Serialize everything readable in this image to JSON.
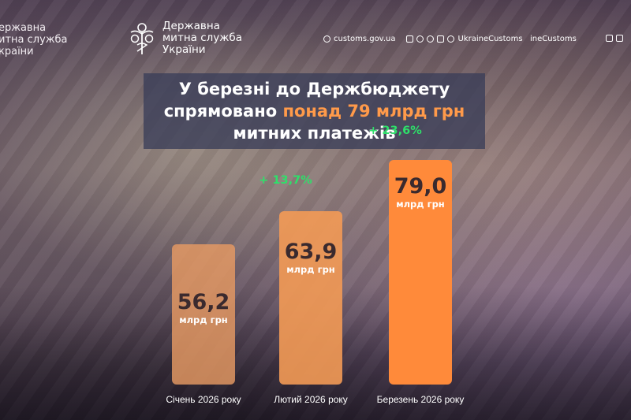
{
  "header": {
    "brand_left_lines": [
      "ержавна",
      "итна служба",
      "країни"
    ],
    "brand_lines": [
      "Державна",
      "митна служба",
      "України"
    ],
    "website": "customs.gov.ua",
    "handle": "UkraineCustoms",
    "handle_partial": "ineCustoms"
  },
  "headline": {
    "line1": "У березні до Держбюджету",
    "line2_prefix": "спрямовано ",
    "line2_accent": "понад 79 млрд грн",
    "line3": "митних платежів"
  },
  "colors": {
    "bar_light": "#e79a63",
    "bar_mid": "#f39a55",
    "bar_bright": "#ff8a3a",
    "growth": "#2ee06a",
    "accent": "#ff9a4a"
  },
  "chart_data": {
    "type": "bar",
    "categories": [
      "Січень 2026 року",
      "Лютий 2026 року",
      "Березень 2026 року"
    ],
    "values": [
      56.2,
      63.9,
      79.0
    ],
    "value_labels": [
      "56,2",
      "63,9",
      "79,0"
    ],
    "unit": "млрд грн",
    "growth_labels": [
      "",
      "+ 13,7%",
      "+ 23,6%"
    ],
    "ylim": [
      0,
      100
    ],
    "grid": false,
    "legend": "none"
  }
}
